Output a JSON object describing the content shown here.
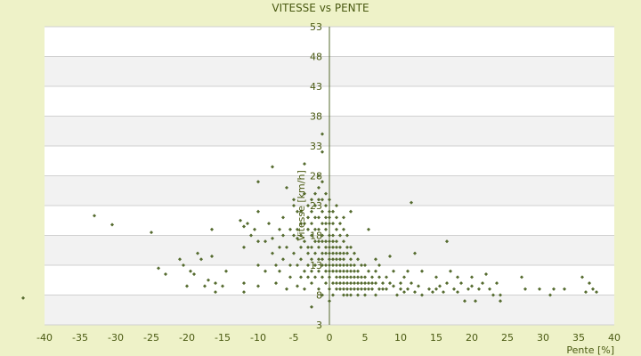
{
  "chart_data": {
    "type": "scatter",
    "title": "VITESSE vs PENTE",
    "xlabel": "Pente [%]",
    "ylabel": "Vitesse [km/h]",
    "xlim": [
      -40,
      40
    ],
    "ylim": [
      3,
      53
    ],
    "x_ticks": [
      "-40",
      "-35",
      "-30",
      "-25",
      "-20",
      "-15",
      "-10",
      "-5",
      "0",
      "5",
      "10",
      "15",
      "20",
      "25",
      "30",
      "35",
      "40"
    ],
    "y_ticks": [
      "3",
      "8",
      "13",
      "18",
      "23",
      "28",
      "33",
      "38",
      "43",
      "48",
      "53"
    ],
    "grid": "horizontal alternating bands",
    "marker_color": "#556b2f",
    "points": [
      [
        -43,
        7.5
      ],
      [
        -33,
        21.3
      ],
      [
        -30.5,
        19.8
      ],
      [
        -25,
        18.5
      ],
      [
        -24,
        12.5
      ],
      [
        -23,
        11.5
      ],
      [
        -21,
        14
      ],
      [
        -20.5,
        13
      ],
      [
        -20,
        9.5
      ],
      [
        -19.5,
        12
      ],
      [
        -19,
        11.5
      ],
      [
        -18.5,
        15
      ],
      [
        -18,
        14
      ],
      [
        -17.5,
        9.5
      ],
      [
        -17,
        10.5
      ],
      [
        -16.5,
        14.5
      ],
      [
        -16.5,
        19
      ],
      [
        -16,
        8.5
      ],
      [
        -16,
        10
      ],
      [
        -15,
        9.5
      ],
      [
        -14.5,
        12
      ],
      [
        -12.5,
        20.5
      ],
      [
        -12,
        19.5
      ],
      [
        -12,
        16
      ],
      [
        -12,
        8.5
      ],
      [
        -12,
        10
      ],
      [
        -11.5,
        20
      ],
      [
        -11,
        18
      ],
      [
        -10.5,
        19
      ],
      [
        -10,
        13
      ],
      [
        -10,
        17
      ],
      [
        -10,
        22
      ],
      [
        -10,
        27
      ],
      [
        -10,
        9.5
      ],
      [
        -9,
        17
      ],
      [
        -9,
        12
      ],
      [
        -8.5,
        20
      ],
      [
        -8,
        15
      ],
      [
        -8,
        17.5
      ],
      [
        -8,
        29.5
      ],
      [
        -7.5,
        13
      ],
      [
        -7.5,
        10
      ],
      [
        -7,
        19
      ],
      [
        -7,
        16
      ],
      [
        -7,
        12
      ],
      [
        -6.5,
        18
      ],
      [
        -6.5,
        21
      ],
      [
        -6.5,
        14
      ],
      [
        -6,
        26
      ],
      [
        -6,
        16
      ],
      [
        -6,
        9
      ],
      [
        -5.5,
        19
      ],
      [
        -5.5,
        13
      ],
      [
        -5.5,
        11
      ],
      [
        -5,
        23
      ],
      [
        -5,
        18
      ],
      [
        -5,
        15
      ],
      [
        -5,
        24
      ],
      [
        -4.5,
        22
      ],
      [
        -4.5,
        19
      ],
      [
        -4.5,
        17.5
      ],
      [
        -4.5,
        13
      ],
      [
        -4.5,
        9.5
      ],
      [
        -4,
        22
      ],
      [
        -4,
        20
      ],
      [
        -4,
        18
      ],
      [
        -4,
        16
      ],
      [
        -4,
        14
      ],
      [
        -4,
        11
      ],
      [
        -3.5,
        30
      ],
      [
        -3.5,
        25
      ],
      [
        -3.5,
        20
      ],
      [
        -3.5,
        17
      ],
      [
        -3.5,
        12
      ],
      [
        -3.5,
        9
      ],
      [
        -3,
        23
      ],
      [
        -3,
        21
      ],
      [
        -3,
        19
      ],
      [
        -3,
        16
      ],
      [
        -3,
        15
      ],
      [
        -3,
        13
      ],
      [
        -3,
        11
      ],
      [
        -2.5,
        24
      ],
      [
        -2.5,
        22
      ],
      [
        -2.5,
        20
      ],
      [
        -2.5,
        18
      ],
      [
        -2.5,
        16
      ],
      [
        -2.5,
        14
      ],
      [
        -2.5,
        12
      ],
      [
        -2.5,
        10
      ],
      [
        -2.5,
        6
      ],
      [
        -2,
        25
      ],
      [
        -2,
        23
      ],
      [
        -2,
        21
      ],
      [
        -2,
        19
      ],
      [
        -2,
        17
      ],
      [
        -2,
        15
      ],
      [
        -2,
        13
      ],
      [
        -2,
        11
      ],
      [
        -1.5,
        28
      ],
      [
        -1.5,
        26
      ],
      [
        -1.5,
        24
      ],
      [
        -1.5,
        21
      ],
      [
        -1.5,
        19
      ],
      [
        -1.5,
        17
      ],
      [
        -1.5,
        16
      ],
      [
        -1.5,
        14
      ],
      [
        -1.5,
        12
      ],
      [
        -1.5,
        9
      ],
      [
        -1,
        35
      ],
      [
        -1,
        32
      ],
      [
        -1,
        27
      ],
      [
        -1,
        24
      ],
      [
        -1,
        22
      ],
      [
        -1,
        20
      ],
      [
        -1,
        18
      ],
      [
        -1,
        17
      ],
      [
        -1,
        15
      ],
      [
        -1,
        14
      ],
      [
        -1,
        13
      ],
      [
        -1,
        11
      ],
      [
        -1,
        8
      ],
      [
        -0.5,
        25
      ],
      [
        -0.5,
        23
      ],
      [
        -0.5,
        21
      ],
      [
        -0.5,
        20
      ],
      [
        -0.5,
        19
      ],
      [
        -0.5,
        17
      ],
      [
        -0.5,
        16
      ],
      [
        -0.5,
        15
      ],
      [
        -0.5,
        13
      ],
      [
        -0.5,
        12
      ],
      [
        -0.5,
        10
      ],
      [
        0,
        24
      ],
      [
        0,
        22
      ],
      [
        0,
        21
      ],
      [
        0,
        20
      ],
      [
        0,
        18
      ],
      [
        0,
        17
      ],
      [
        0,
        16
      ],
      [
        0,
        15
      ],
      [
        0,
        14
      ],
      [
        0,
        13
      ],
      [
        0,
        12
      ],
      [
        0,
        11
      ],
      [
        0,
        9
      ],
      [
        0,
        7
      ],
      [
        0.5,
        22
      ],
      [
        0.5,
        20
      ],
      [
        0.5,
        18
      ],
      [
        0.5,
        17
      ],
      [
        0.5,
        16
      ],
      [
        0.5,
        15
      ],
      [
        0.5,
        14
      ],
      [
        0.5,
        13
      ],
      [
        0.5,
        12
      ],
      [
        0.5,
        10
      ],
      [
        0.5,
        8
      ],
      [
        1,
        23
      ],
      [
        1,
        21
      ],
      [
        1,
        19
      ],
      [
        1,
        17
      ],
      [
        1,
        16
      ],
      [
        1,
        15
      ],
      [
        1,
        14
      ],
      [
        1,
        13
      ],
      [
        1,
        12
      ],
      [
        1,
        11
      ],
      [
        1,
        10
      ],
      [
        1,
        9
      ],
      [
        1.5,
        20
      ],
      [
        1.5,
        18
      ],
      [
        1.5,
        16
      ],
      [
        1.5,
        15
      ],
      [
        1.5,
        14
      ],
      [
        1.5,
        13
      ],
      [
        1.5,
        12
      ],
      [
        1.5,
        11
      ],
      [
        1.5,
        10
      ],
      [
        1.5,
        9
      ],
      [
        2,
        21
      ],
      [
        2,
        19
      ],
      [
        2,
        17
      ],
      [
        2,
        15
      ],
      [
        2,
        14
      ],
      [
        2,
        13
      ],
      [
        2,
        12
      ],
      [
        2,
        11
      ],
      [
        2,
        10
      ],
      [
        2,
        9
      ],
      [
        2,
        8
      ],
      [
        2.5,
        18
      ],
      [
        2.5,
        16
      ],
      [
        2.5,
        15
      ],
      [
        2.5,
        13
      ],
      [
        2.5,
        12
      ],
      [
        2.5,
        11
      ],
      [
        2.5,
        10
      ],
      [
        2.5,
        9
      ],
      [
        2.5,
        8
      ],
      [
        3,
        22
      ],
      [
        3,
        16
      ],
      [
        3,
        14
      ],
      [
        3,
        13
      ],
      [
        3,
        12
      ],
      [
        3,
        11
      ],
      [
        3,
        10
      ],
      [
        3,
        9
      ],
      [
        3,
        8
      ],
      [
        3.5,
        15
      ],
      [
        3.5,
        13
      ],
      [
        3.5,
        12
      ],
      [
        3.5,
        11
      ],
      [
        3.5,
        10
      ],
      [
        3.5,
        9
      ],
      [
        4,
        14
      ],
      [
        4,
        12
      ],
      [
        4,
        11
      ],
      [
        4,
        10
      ],
      [
        4,
        9
      ],
      [
        4,
        8
      ],
      [
        4.5,
        13
      ],
      [
        4.5,
        11
      ],
      [
        4.5,
        10
      ],
      [
        4.5,
        9
      ],
      [
        5,
        13
      ],
      [
        5,
        11
      ],
      [
        5,
        10
      ],
      [
        5,
        9
      ],
      [
        5,
        8
      ],
      [
        5.5,
        19
      ],
      [
        5.5,
        12
      ],
      [
        5.5,
        10
      ],
      [
        5.5,
        9
      ],
      [
        6,
        11
      ],
      [
        6,
        10
      ],
      [
        6,
        9
      ],
      [
        6.5,
        14
      ],
      [
        6.5,
        12
      ],
      [
        6.5,
        10
      ],
      [
        6.5,
        8
      ],
      [
        7,
        13
      ],
      [
        7,
        11
      ],
      [
        7,
        9
      ],
      [
        7.5,
        10
      ],
      [
        7.5,
        9
      ],
      [
        8,
        11
      ],
      [
        8,
        9
      ],
      [
        8.5,
        14.5
      ],
      [
        8.5,
        10
      ],
      [
        9,
        12
      ],
      [
        9,
        9.5
      ],
      [
        9.5,
        8
      ],
      [
        10,
        10
      ],
      [
        10,
        9
      ],
      [
        10.5,
        11
      ],
      [
        10.5,
        8.5
      ],
      [
        11,
        12
      ],
      [
        11,
        9
      ],
      [
        11.5,
        23.5
      ],
      [
        11.5,
        10
      ],
      [
        12,
        15
      ],
      [
        12,
        8.5
      ],
      [
        12.5,
        9.5
      ],
      [
        13,
        12
      ],
      [
        13,
        8
      ],
      [
        14,
        9
      ],
      [
        14.5,
        8.5
      ],
      [
        15,
        11
      ],
      [
        15,
        9
      ],
      [
        15.5,
        9.5
      ],
      [
        16,
        8.5
      ],
      [
        16.5,
        10
      ],
      [
        16.5,
        17
      ],
      [
        17,
        12
      ],
      [
        17.5,
        9
      ],
      [
        18,
        11
      ],
      [
        18,
        8.5
      ],
      [
        18.5,
        10
      ],
      [
        19,
        7
      ],
      [
        19.5,
        9
      ],
      [
        20,
        11
      ],
      [
        20,
        9.5
      ],
      [
        20.5,
        7
      ],
      [
        21,
        9
      ],
      [
        21.5,
        10
      ],
      [
        22,
        11.5
      ],
      [
        22.5,
        9
      ],
      [
        23,
        8
      ],
      [
        23.5,
        10
      ],
      [
        24,
        8
      ],
      [
        24,
        7
      ],
      [
        27,
        11
      ],
      [
        27.5,
        9
      ],
      [
        29.5,
        9
      ],
      [
        31,
        8
      ],
      [
        31.5,
        9
      ],
      [
        33,
        9
      ],
      [
        35.5,
        11
      ],
      [
        36,
        8.5
      ],
      [
        36.5,
        10
      ],
      [
        37,
        9
      ],
      [
        37.5,
        8.5
      ]
    ]
  }
}
